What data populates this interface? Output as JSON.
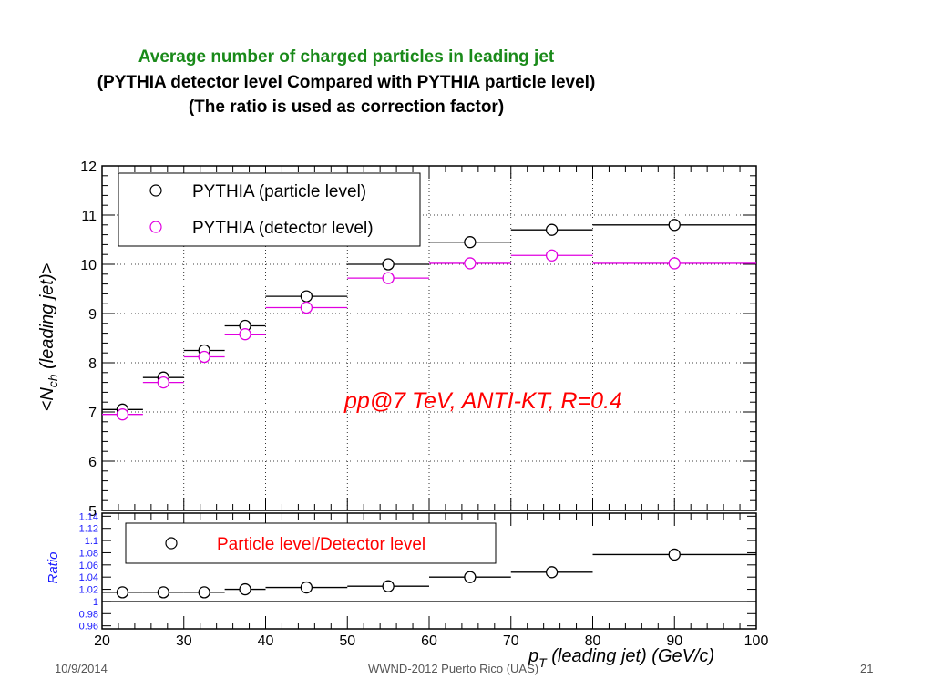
{
  "slide": {
    "title_lines": [
      "Average number of charged particles in leading jet",
      "(PYTHIA detector level Compared with PYTHIA particle level)",
      "(The ratio is used as correction factor)"
    ],
    "footer": {
      "date": "10/9/2014",
      "conference": "WWND-2012 Puerto Rico (UAS)",
      "page": "21"
    },
    "colors": {
      "title_accent": "#1a8a1a",
      "detector": "#e000e0",
      "annotation": "#ff0000",
      "ratio_axis": "#1a1aff"
    }
  },
  "chart_data": [
    {
      "type": "scatter",
      "ylabel": "<N_ch (leading jet)>",
      "annotation": "pp@7 TeV, ANTI-KT, R=0.4",
      "xlim": [
        20,
        100
      ],
      "ylim": [
        5,
        12
      ],
      "yticks": [
        5,
        6,
        7,
        8,
        9,
        10,
        11,
        12
      ],
      "grid": true,
      "legend_position": "top-left",
      "bin_edges": [
        20,
        25,
        30,
        35,
        40,
        50,
        60,
        70,
        80,
        100
      ],
      "series": [
        {
          "name": "PYTHIA (particle level)",
          "marker": "open-circle",
          "color": "#000000",
          "x": [
            22.5,
            27.5,
            32.5,
            37.5,
            45,
            55,
            65,
            75,
            90
          ],
          "y": [
            7.05,
            7.7,
            8.25,
            8.75,
            9.35,
            10.0,
            10.45,
            10.7,
            10.8
          ]
        },
        {
          "name": "PYTHIA (detector level)",
          "marker": "open-circle",
          "color": "#e000e0",
          "x": [
            22.5,
            27.5,
            32.5,
            37.5,
            45,
            55,
            65,
            75,
            90
          ],
          "y": [
            6.95,
            7.6,
            8.12,
            8.58,
            9.12,
            9.72,
            10.02,
            10.18,
            10.02
          ]
        }
      ]
    },
    {
      "type": "scatter",
      "ylabel": "Ratio",
      "xlabel": "p_T (leading jet) (GeV/c)",
      "xlim": [
        20,
        100
      ],
      "ylim": [
        0.955,
        1.145
      ],
      "xticks": [
        20,
        30,
        40,
        50,
        60,
        70,
        80,
        90,
        100
      ],
      "yticks": [
        0.96,
        0.98,
        1,
        1.02,
        1.04,
        1.06,
        1.08,
        1.1,
        1.12,
        1.14
      ],
      "ytick_labels": [
        "0.96",
        "0.98",
        "1",
        "1.02",
        "1.04",
        "1.06",
        "1.08",
        "1.1",
        "1.12",
        "1.14"
      ],
      "reference_line": 1,
      "legend_position": "top",
      "bin_edges": [
        20,
        25,
        30,
        35,
        40,
        50,
        60,
        70,
        80,
        100
      ],
      "series": [
        {
          "name": "Particle level/Detector level",
          "marker": "open-circle",
          "color": "#000000",
          "x": [
            22.5,
            27.5,
            32.5,
            37.5,
            45,
            55,
            65,
            75,
            90
          ],
          "y": [
            1.015,
            1.015,
            1.015,
            1.02,
            1.023,
            1.025,
            1.04,
            1.048,
            1.077
          ]
        }
      ]
    }
  ]
}
